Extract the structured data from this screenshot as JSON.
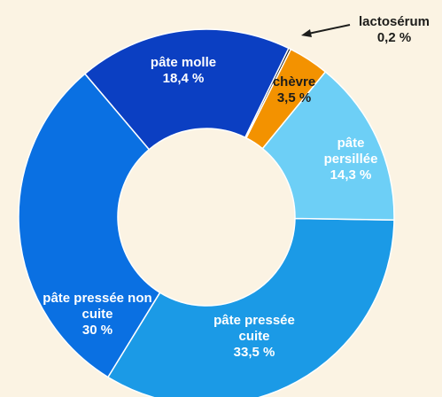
{
  "chart_data": {
    "type": "donut",
    "categories": [
      "lactosérum",
      "chèvre",
      "pâte persillée",
      "pâte pressée cuite",
      "pâte pressée non cuite",
      "pâte molle"
    ],
    "values": [
      0.2,
      3.5,
      14.3,
      33.5,
      30,
      18.4
    ],
    "value_labels": [
      "0,2 %",
      "3,5 %",
      "14,3 %",
      "33,5 %",
      "30 %",
      "18,4 %"
    ],
    "colors": [
      "#1d1d1b",
      "#f39200",
      "#6dcff6",
      "#1b9ae6",
      "#0a70e2",
      "#0b3fc2"
    ]
  }
}
